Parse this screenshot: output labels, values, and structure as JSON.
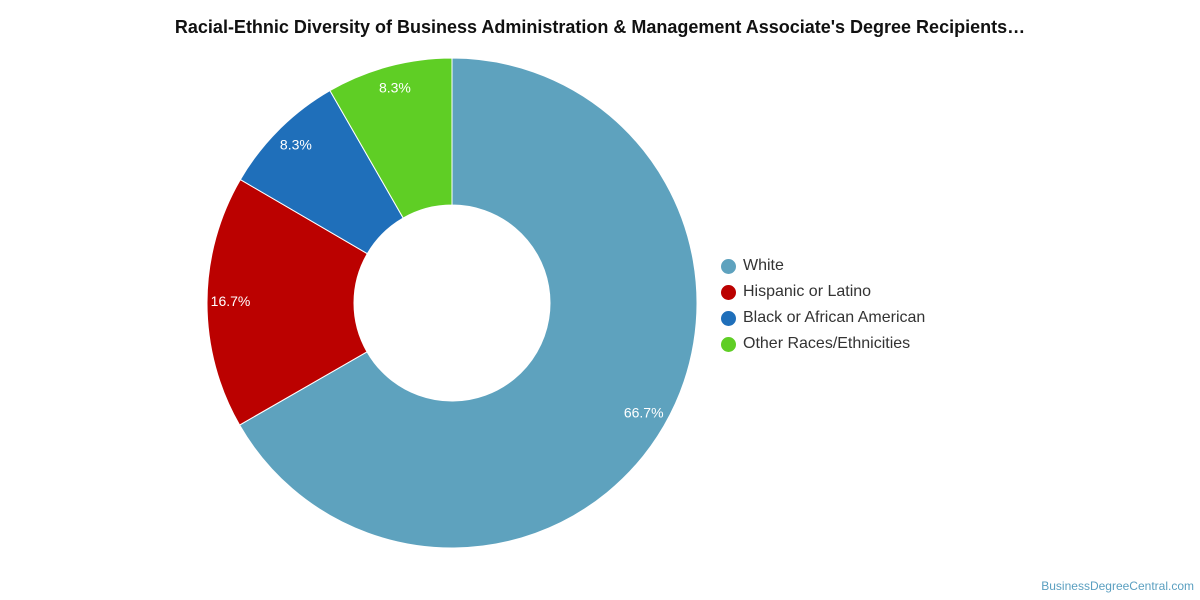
{
  "chart_data": {
    "type": "pie",
    "title": "Racial-Ethnic Diversity of Business Administration & Management Associate's Degree Recipients…",
    "categories": [
      "White",
      "Hispanic or Latino",
      "Black or African American",
      "Other Races/Ethnicities"
    ],
    "values": [
      66.7,
      16.7,
      8.3,
      8.3
    ],
    "labels": [
      "66.7%",
      "16.7%",
      "8.3%",
      "8.3%"
    ],
    "colors": [
      "#5ea2be",
      "#bb0100",
      "#1f6fba",
      "#5fce25"
    ],
    "donut": true,
    "legend_position": "right"
  },
  "credit": "BusinessDegreeCentral.com"
}
